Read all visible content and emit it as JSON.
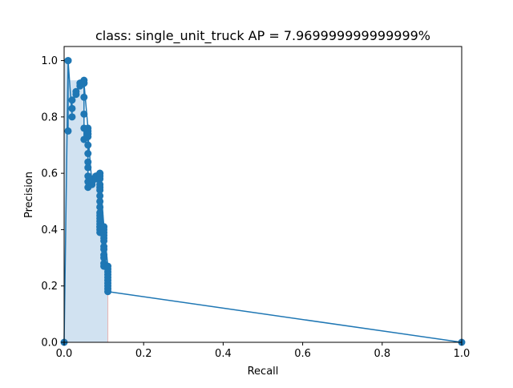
{
  "chart_data": {
    "type": "line",
    "title": "class: single_unit_truck AP = 7.969999999999999%",
    "xlabel": "Recall",
    "ylabel": "Precision",
    "xlim": [
      0.0,
      1.0
    ],
    "ylim": [
      0.0,
      1.05
    ],
    "xticks": [
      "0.0",
      "0.2",
      "0.4",
      "0.6",
      "0.8",
      "1.0"
    ],
    "yticks": [
      "0.0",
      "0.2",
      "0.4",
      "0.6",
      "0.8",
      "1.0"
    ],
    "grid": false,
    "colors": {
      "line": "#1f77b4",
      "fill": "#c6dbed",
      "edge": "#e8b4b4"
    },
    "series": [
      {
        "x": [
          0.0,
          0.01,
          0.01,
          0.01,
          0.02,
          0.02,
          0.02,
          0.03,
          0.03,
          0.04,
          0.04,
          0.05,
          0.05,
          0.05,
          0.05,
          0.05,
          0.05,
          0.05,
          0.06,
          0.06,
          0.06,
          0.06,
          0.06,
          0.06,
          0.06,
          0.06,
          0.06,
          0.06,
          0.06,
          0.06,
          0.07,
          0.07,
          0.07,
          0.08,
          0.08,
          0.09,
          0.09,
          0.09,
          0.09,
          0.09,
          0.09,
          0.09,
          0.09,
          0.09,
          0.09,
          0.09,
          0.09,
          0.09,
          0.09,
          0.09,
          0.09,
          0.09,
          0.09,
          0.09,
          0.1,
          0.1,
          0.1,
          0.1,
          0.1,
          0.1,
          0.1,
          0.1,
          0.1,
          0.1,
          0.1,
          0.1,
          0.1,
          0.11,
          0.11,
          0.11,
          0.11,
          0.11,
          0.11,
          0.11,
          0.11,
          0.11,
          0.11,
          1.0
        ],
        "y": [
          0.0,
          1.0,
          0.75,
          1.0,
          0.8,
          0.83,
          0.86,
          0.88,
          0.89,
          0.91,
          0.92,
          0.93,
          0.92,
          0.87,
          0.81,
          0.76,
          0.72,
          0.92,
          0.76,
          0.75,
          0.74,
          0.73,
          0.7,
          0.67,
          0.64,
          0.62,
          0.59,
          0.57,
          0.55,
          0.74,
          0.56,
          0.57,
          0.58,
          0.58,
          0.59,
          0.6,
          0.59,
          0.58,
          0.56,
          0.55,
          0.54,
          0.52,
          0.5,
          0.48,
          0.46,
          0.45,
          0.43,
          0.42,
          0.41,
          0.4,
          0.39,
          0.41,
          0.44,
          0.6,
          0.41,
          0.4,
          0.39,
          0.38,
          0.37,
          0.36,
          0.34,
          0.33,
          0.31,
          0.3,
          0.28,
          0.27,
          0.41,
          0.27,
          0.26,
          0.25,
          0.24,
          0.23,
          0.22,
          0.21,
          0.2,
          0.19,
          0.18,
          0.0
        ]
      }
    ],
    "filled_area": {
      "x": [
        0.0,
        0.01,
        0.01,
        0.05,
        0.05,
        0.06,
        0.06,
        0.09,
        0.09,
        0.1,
        0.1,
        0.11,
        0.11
      ],
      "y": [
        1.0,
        1.0,
        0.93,
        0.93,
        0.76,
        0.76,
        0.6,
        0.6,
        0.41,
        0.41,
        0.28,
        0.28,
        0.0
      ]
    }
  }
}
